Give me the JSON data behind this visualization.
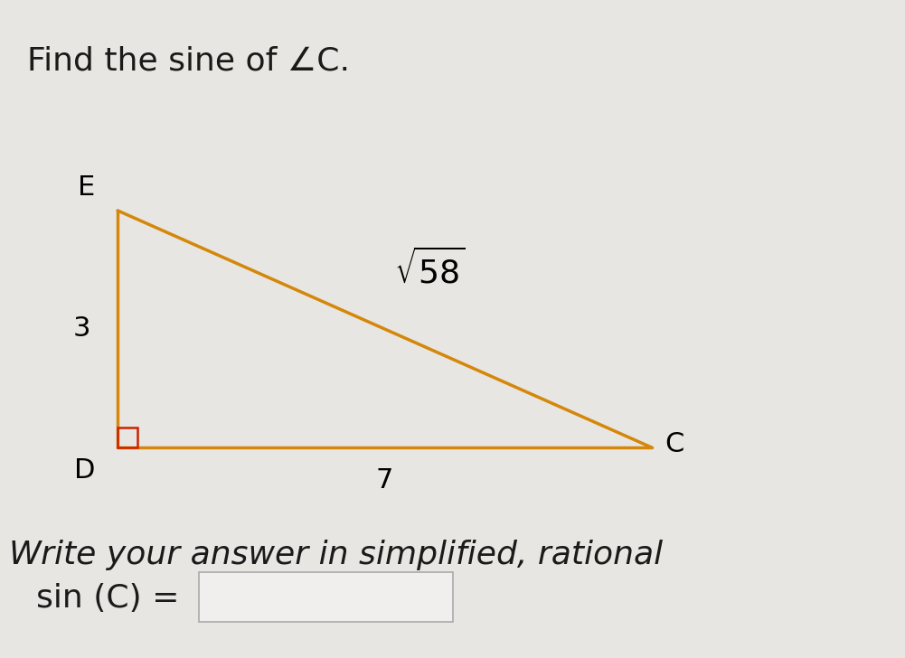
{
  "title": "Find the sine of ∠C.",
  "subtitle": "Write your answer in simplified, rational",
  "answer_label": "sin (C) =",
  "triangle": {
    "D": [
      0.13,
      0.32
    ],
    "E": [
      0.13,
      0.68
    ],
    "C": [
      0.72,
      0.32
    ]
  },
  "side_labels": {
    "DE": "3",
    "DC": "7",
    "EC": "√58"
  },
  "vertex_labels": {
    "E": "E",
    "D": "D",
    "C": "C"
  },
  "triangle_color": "#D4870A",
  "right_angle_color": "#CC2200",
  "background_color": "#E8E6E2",
  "title_fontsize": 26,
  "subtitle_fontsize": 26,
  "label_fontsize": 22,
  "vertex_fontsize": 22,
  "answer_fontsize": 26,
  "sqrt_overline": true
}
